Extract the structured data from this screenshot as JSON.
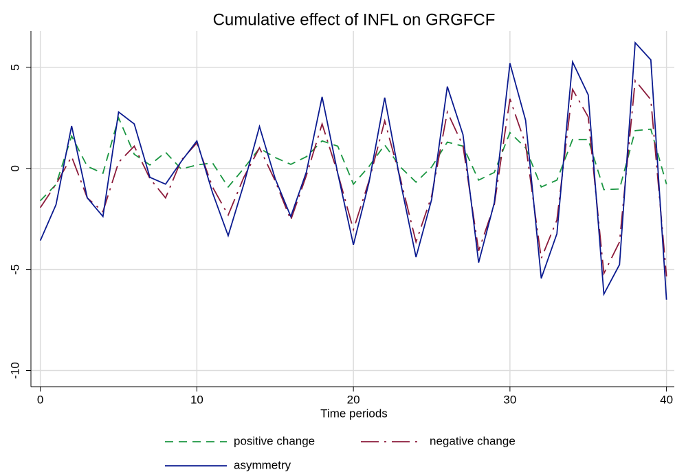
{
  "chart_data": {
    "type": "line",
    "title": "Cumulative effect of INFL on GRGFCF",
    "x_label": "Time periods",
    "x": [
      0,
      1,
      2,
      3,
      4,
      5,
      6,
      7,
      8,
      9,
      10,
      11,
      12,
      13,
      14,
      15,
      16,
      17,
      18,
      19,
      20,
      21,
      22,
      23,
      24,
      25,
      26,
      27,
      28,
      29,
      30,
      31,
      32,
      33,
      34,
      35,
      36,
      37,
      38,
      39,
      40
    ],
    "series": [
      {
        "name": "positive change",
        "color": "#1a9641",
        "linestyle": "dash",
        "values": [
          -1.6,
          -0.8,
          1.6,
          0.1,
          -0.24,
          2.5,
          0.7,
          0.17,
          0.8,
          -0.03,
          0.17,
          0.27,
          -0.92,
          0,
          1.0,
          0.54,
          0.2,
          0.58,
          1.36,
          1.1,
          -0.78,
          0.1,
          1.16,
          0.07,
          -0.68,
          0.07,
          1.3,
          1.1,
          -0.58,
          -0.2,
          1.77,
          1.02,
          -0.92,
          -0.58,
          1.43,
          1.43,
          -1.05,
          -1.02,
          1.87,
          1.94,
          -0.78
        ]
      },
      {
        "name": "negative change",
        "color": "#8b1a3a",
        "linestyle": "longdash-dot",
        "values": [
          -1.94,
          -0.78,
          0.58,
          -1.46,
          -2.14,
          0.3,
          1.1,
          -0.5,
          -1.46,
          0.4,
          1.26,
          -0.92,
          -2.31,
          -0.44,
          1.02,
          -0.61,
          -2.55,
          -0.34,
          2.2,
          -0.24,
          -3.03,
          -0.61,
          2.35,
          -0.5,
          -3.64,
          -1.36,
          2.79,
          1.12,
          -4.08,
          -1.8,
          3.44,
          1.19,
          -4.46,
          -2.55,
          3.91,
          2.55,
          -5.2,
          -3.64,
          4.35,
          3.4,
          -5.34
        ]
      },
      {
        "name": "asymmetry",
        "color": "#0a1a8f",
        "linestyle": "solid",
        "values": [
          -3.57,
          -1.8,
          2.1,
          -1.46,
          -2.38,
          2.79,
          2.2,
          -0.44,
          -0.78,
          0.34,
          1.36,
          -1.2,
          -3.33,
          -0.78,
          2.07,
          -0.5,
          -2.38,
          -0.17,
          3.54,
          -0.24,
          -3.78,
          -0.68,
          3.5,
          -0.65,
          -4.39,
          -1.53,
          4.05,
          1.67,
          -4.66,
          -1.7,
          5.2,
          2.38,
          -5.44,
          -3.23,
          5.27,
          3.64,
          -6.22,
          -4.76,
          6.22,
          5.37,
          -6.5
        ]
      }
    ],
    "xlim": [
      -0.6,
      40.5
    ],
    "xticks": [
      0,
      10,
      20,
      30,
      40
    ],
    "ylim": [
      -10.8,
      6.8
    ],
    "yticks": [
      -10,
      -5,
      0,
      5
    ],
    "grid": true,
    "legend": "bottom"
  }
}
